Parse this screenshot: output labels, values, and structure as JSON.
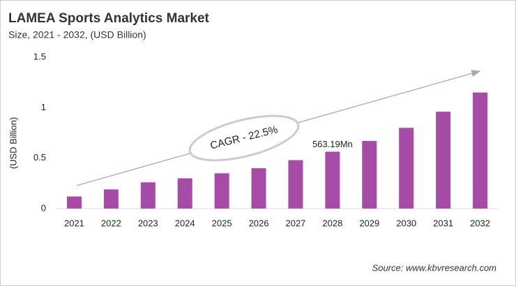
{
  "chart_data": {
    "type": "bar",
    "title": "LAMEA Sports Analytics Market",
    "subtitle": "Size, 2021 - 2032, (USD Billion)",
    "y_label": "(USD Billion)",
    "categories": [
      "2021",
      "2022",
      "2023",
      "2024",
      "2025",
      "2026",
      "2027",
      "2028",
      "2029",
      "2030",
      "2031",
      "2032"
    ],
    "values": [
      0.12,
      0.19,
      0.26,
      0.3,
      0.35,
      0.4,
      0.48,
      0.56319,
      0.67,
      0.8,
      0.96,
      1.15
    ],
    "value_labels": [
      null,
      null,
      null,
      null,
      null,
      null,
      null,
      "563.19Mn",
      null,
      null,
      null,
      null
    ],
    "color": "#a64ca6",
    "ylim": [
      0,
      1.5
    ],
    "yticks": [
      0,
      0.5,
      1,
      1.5
    ],
    "grid": false,
    "annotation": "CAGR - 22.5%",
    "source": "Source: www.kbvresearch.com"
  }
}
